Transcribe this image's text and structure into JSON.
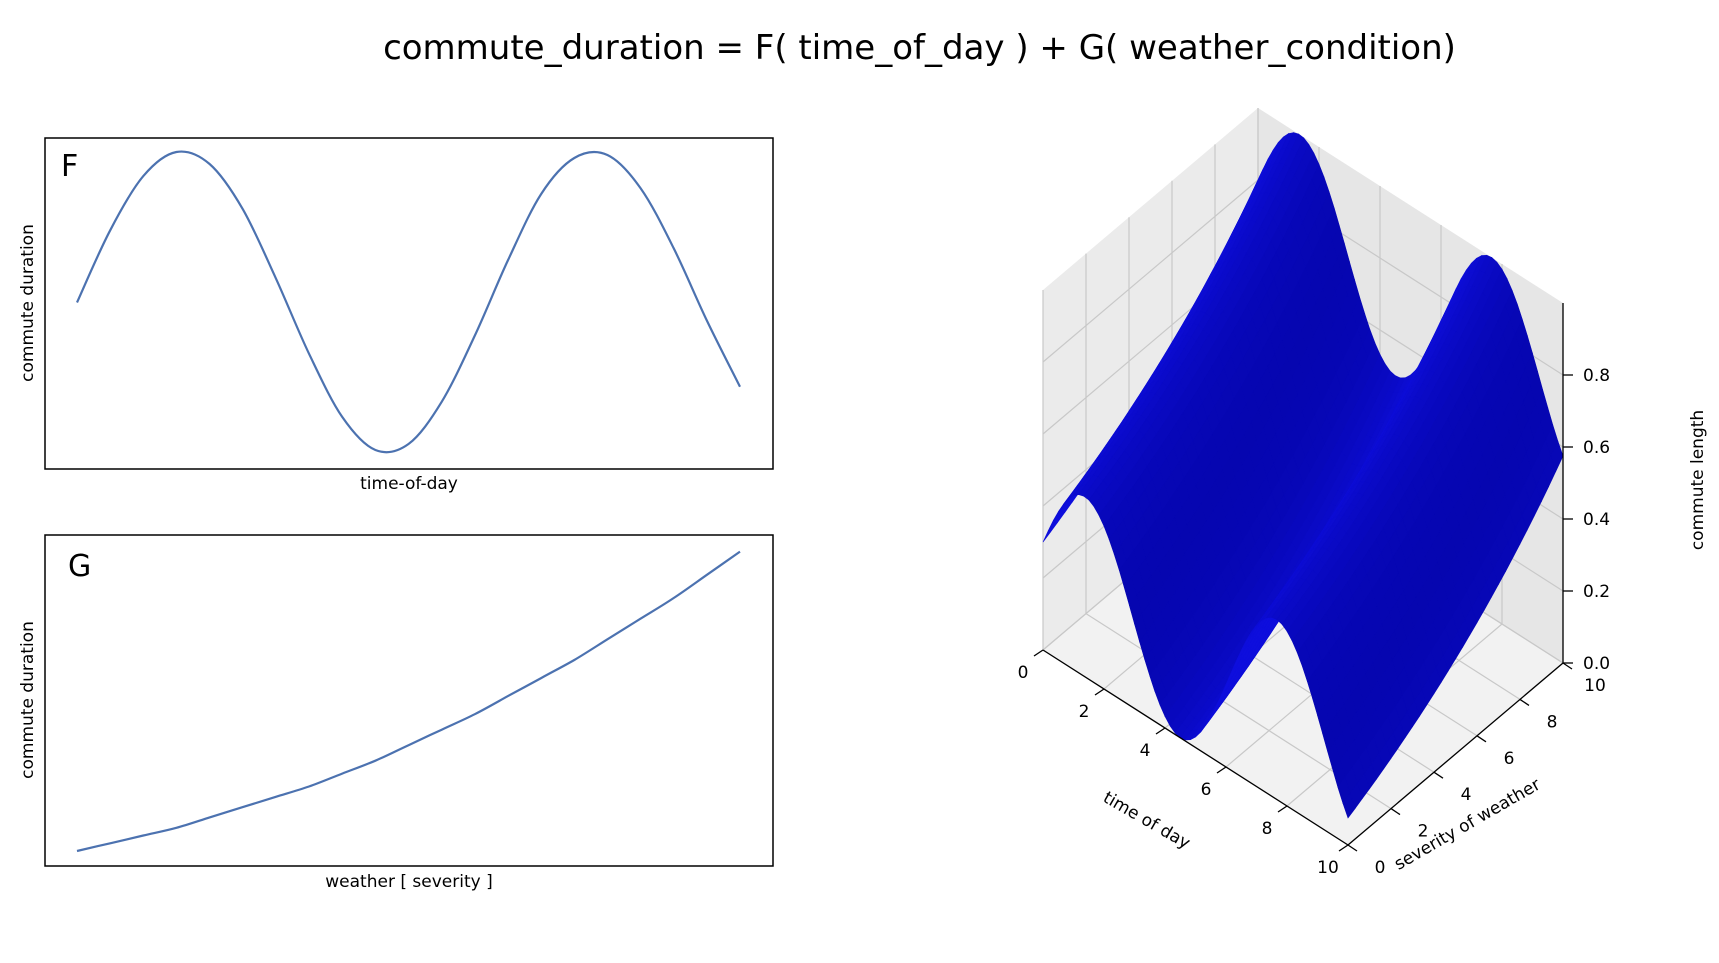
{
  "title": "commute_duration = F( time_of_day ) + G( weather_condition)",
  "chart_data": [
    {
      "type": "line",
      "panel_label": "F",
      "xlabel": "time-of-day",
      "ylabel": "commute duration",
      "x": [
        0,
        0.5,
        1,
        1.5,
        2,
        2.5,
        3,
        3.5,
        4,
        4.5,
        5,
        5.5,
        6,
        6.5,
        7,
        7.5,
        8,
        8.5,
        9,
        9.5,
        10
      ],
      "y": [
        0.5,
        0.74,
        0.92,
        1.0,
        0.96,
        0.81,
        0.58,
        0.33,
        0.12,
        0.01,
        0.03,
        0.17,
        0.39,
        0.64,
        0.86,
        0.98,
        0.99,
        0.88,
        0.68,
        0.44,
        0.22
      ],
      "color": "#4c72b0"
    },
    {
      "type": "line",
      "panel_label": "G",
      "xlabel": "weather [ severity ]",
      "ylabel": "commute duration",
      "x": [
        0,
        0.5,
        1,
        1.5,
        2,
        2.5,
        3,
        3.5,
        4,
        4.5,
        5,
        5.5,
        6,
        6.5,
        7,
        7.5,
        8,
        8.5,
        9,
        9.5,
        10
      ],
      "y": [
        0.0,
        0.03,
        0.06,
        0.09,
        0.13,
        0.17,
        0.21,
        0.25,
        0.3,
        0.35,
        0.41,
        0.47,
        0.53,
        0.6,
        0.67,
        0.74,
        0.82,
        0.9,
        0.98,
        1.07,
        1.16
      ],
      "color": "#4c72b0"
    },
    {
      "type": "surface",
      "xlabel": "time of day",
      "ylabel": "severity of weather",
      "zlabel": "commute length",
      "xticks": [
        "0",
        "2",
        "4",
        "6",
        "8",
        "10"
      ],
      "yticks": [
        "0",
        "2",
        "4",
        "6",
        "8",
        "10"
      ],
      "zticks": [
        "0.0",
        "0.2",
        "0.4",
        "0.6",
        "0.8"
      ],
      "xlim": [
        0,
        10
      ],
      "ylim": [
        0,
        10
      ],
      "zlim": [
        0,
        1
      ],
      "surface_function": "0.5*(0.5 + 0.5*sin(x + 0.2)) + 0.5*(exp(0.1*y) - 1)/(exp(1) - 1)",
      "color": "#1a1aff",
      "grid": true
    }
  ]
}
